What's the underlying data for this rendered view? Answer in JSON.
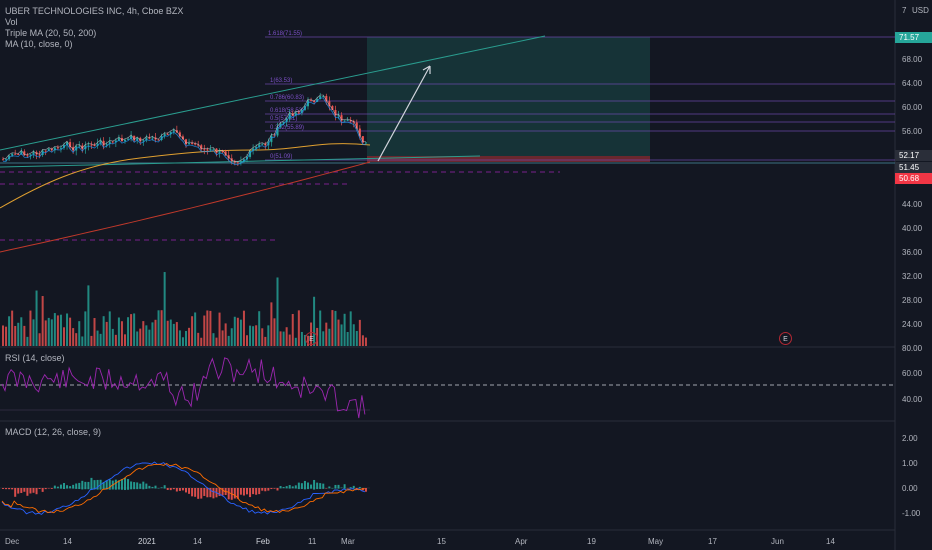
{
  "header": {
    "symbol_line": "UBER TECHNOLOGIES INC, 4h, Cboe BZX",
    "vol_label": "Vol",
    "triple_ma": "Triple MA (20, 50, 200)",
    "ma_label": "MA (10, close, 0)",
    "currency": "USD"
  },
  "price_axis": {
    "ticks": [
      "71.57",
      "68.00",
      "64.00",
      "60.00",
      "56.00",
      "52.17",
      "51.45",
      "50.68",
      "44.00",
      "40.00",
      "36.00",
      "32.00",
      "28.00",
      "24.00"
    ],
    "first_label": "7"
  },
  "price_tags": [
    {
      "value": "71.57",
      "color": "#26a69a"
    },
    {
      "value": "52.17",
      "color": "#2a2e39"
    },
    {
      "value": "51.45",
      "color": "#2a2e39"
    },
    {
      "value": "50.68",
      "color": "#f23645"
    }
  ],
  "fib_labels": [
    "1.618(71.55)",
    "1(63.53)",
    "0.786(60.83)",
    "0.618(58.53)",
    "0.5(57.31)",
    "0.382(55.89)",
    "0(51.09)"
  ],
  "rsi": {
    "label": "RSI (14, close)",
    "ticks": [
      "80.00",
      "60.00",
      "40.00"
    ]
  },
  "macd": {
    "label": "MACD (12, 26, close, 9)",
    "ticks": [
      "2.00",
      "1.00",
      "0.00",
      "-1.00"
    ]
  },
  "time_axis": [
    "Dec",
    "14",
    "2021",
    "14",
    "Feb",
    "11",
    "Mar",
    "15",
    "Apr",
    "19",
    "May",
    "17",
    "Jun",
    "14"
  ],
  "events": [
    "E",
    "E"
  ],
  "colors": {
    "up": "#26a69a",
    "down": "#ef5350",
    "rsi": "#9c27b0",
    "macd": "#2962ff",
    "signal": "#ff6d00",
    "fib": "#7b4fc4",
    "channel": "#2a9d8f"
  }
}
